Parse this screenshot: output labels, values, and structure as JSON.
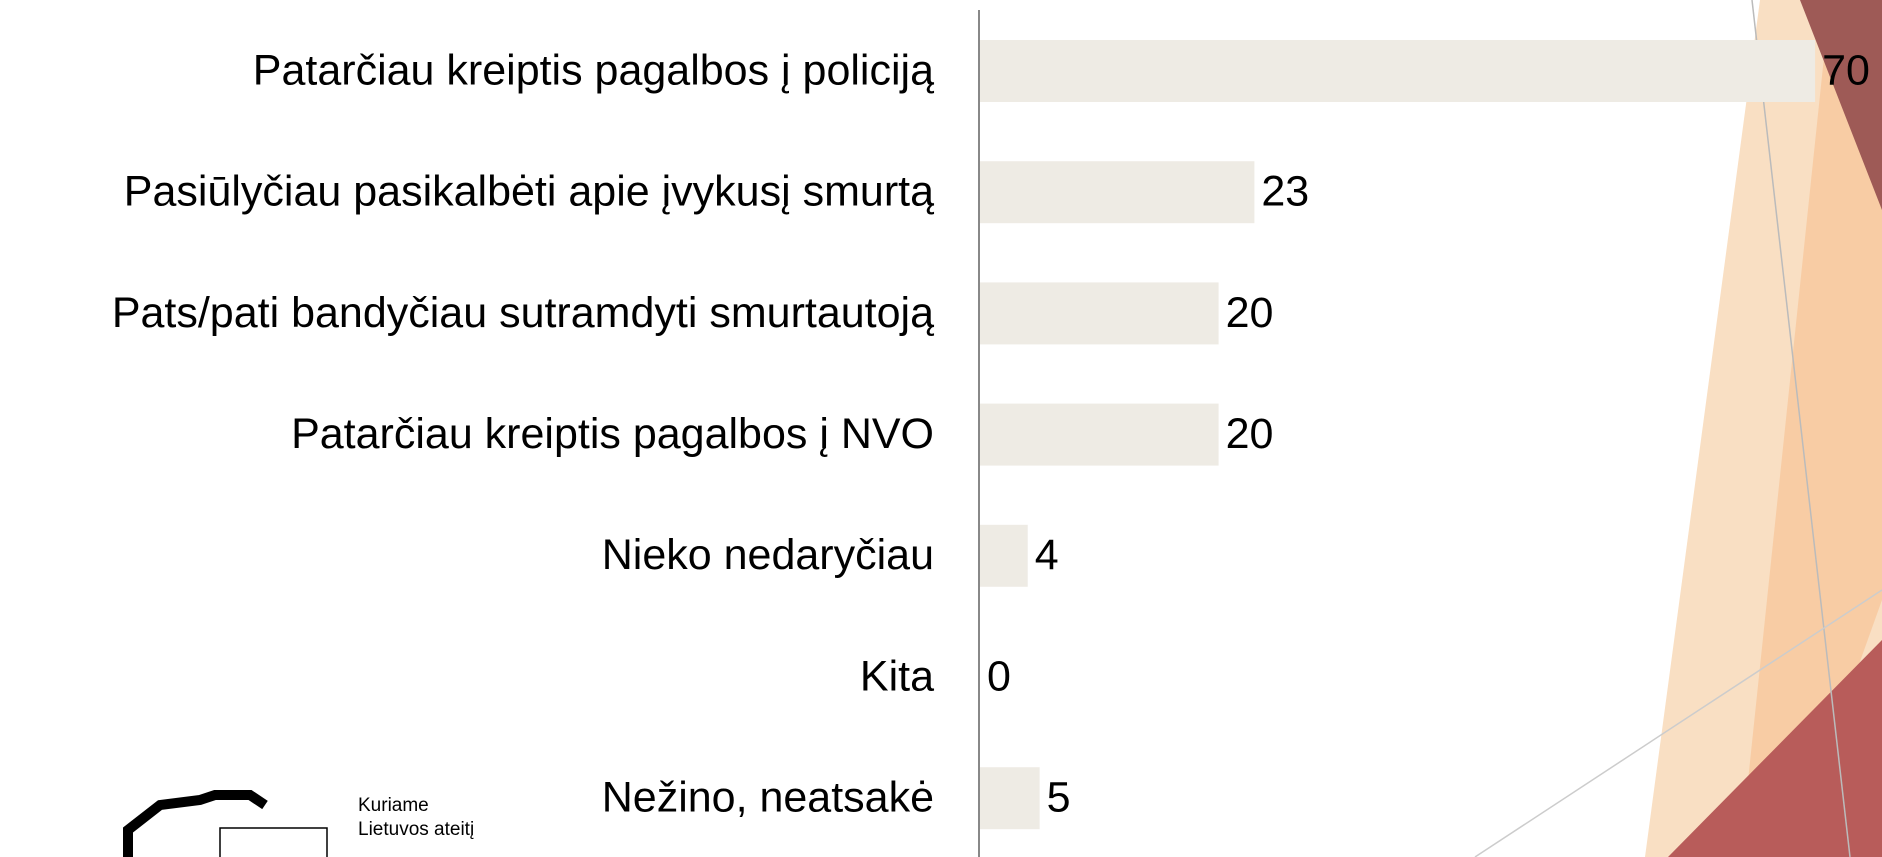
{
  "chart_data": {
    "type": "barh",
    "categories": [
      "Patarčiau kreiptis pagalbos į policiją",
      "Pasiūlyčiau pasikalbėti apie įvykusį smurtą",
      "Pats/pati bandyčiau sutramdyti smurtautoją",
      "Patarčiau kreiptis pagalbos į NVO",
      "Nieko nedaryčiau",
      "Kita",
      "Nežino, neatsakė"
    ],
    "values": [
      70,
      23,
      20,
      20,
      4,
      0,
      5
    ],
    "color": "#eeebe4"
  },
  "logo": {
    "lines": [
      "Kuriame",
      "Lietuvos ateitį"
    ]
  }
}
